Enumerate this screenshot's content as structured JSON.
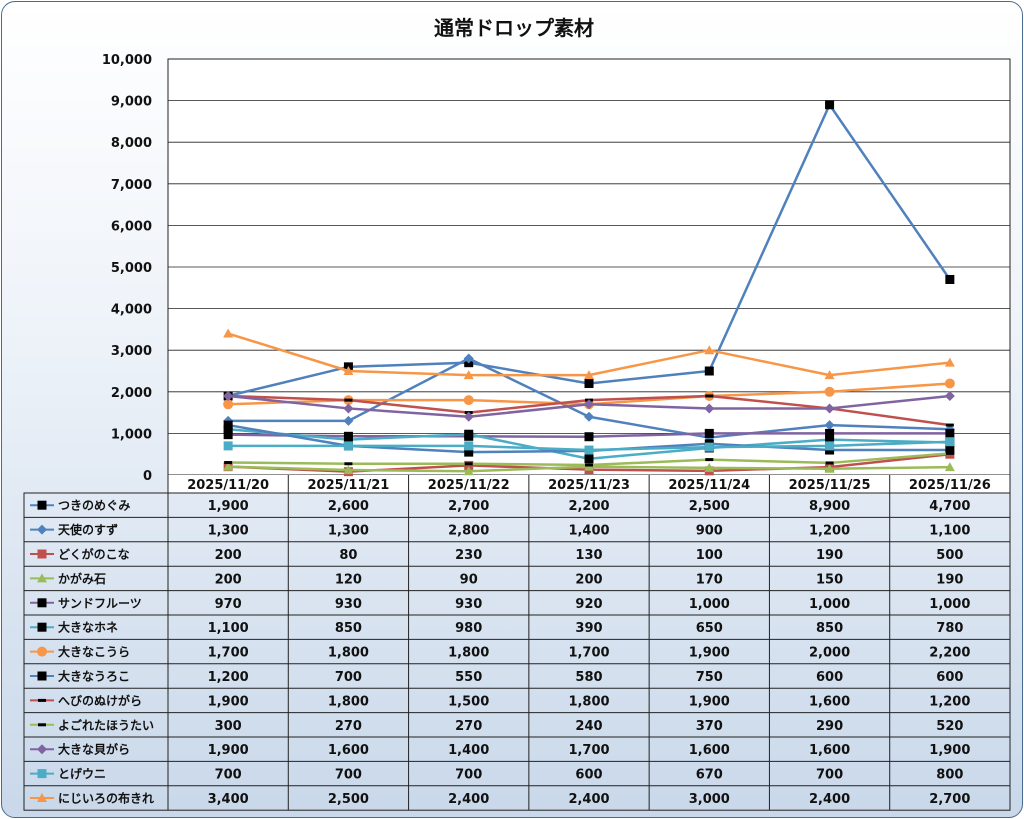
{
  "chart_data": {
    "type": "line",
    "title": "通常ドロップ素材",
    "xlabel": "",
    "ylabel": "",
    "ylim": [
      0,
      10000
    ],
    "yticks": [
      "0",
      "1,000",
      "2,000",
      "3,000",
      "4,000",
      "5,000",
      "6,000",
      "7,000",
      "8,000",
      "9,000",
      "10,000"
    ],
    "categories": [
      "2025/11/20",
      "2025/11/21",
      "2025/11/22",
      "2025/11/23",
      "2025/11/24",
      "2025/11/25",
      "2025/11/26"
    ],
    "series": [
      {
        "name": "つきのめぐみ",
        "values": [
          1900,
          2600,
          2700,
          2200,
          2500,
          8900,
          4700
        ],
        "labels": [
          "1,900",
          "2,600",
          "2,700",
          "2,200",
          "2,500",
          "8,900",
          "4,700"
        ],
        "color": "#4f81bd",
        "marker": "square",
        "marker_color": "#000000"
      },
      {
        "name": "天使のすず",
        "values": [
          1300,
          1300,
          2800,
          1400,
          900,
          1200,
          1100
        ],
        "labels": [
          "1,300",
          "1,300",
          "2,800",
          "1,400",
          "900",
          "1,200",
          "1,100"
        ],
        "color": "#4f81bd",
        "marker": "diamond",
        "marker_color": "#4f81bd"
      },
      {
        "name": "どくがのこな",
        "values": [
          200,
          80,
          230,
          130,
          100,
          190,
          500
        ],
        "labels": [
          "200",
          "80",
          "230",
          "130",
          "100",
          "190",
          "500"
        ],
        "color": "#c0504d",
        "marker": "square",
        "marker_color": "#c0504d"
      },
      {
        "name": "かがみ石",
        "values": [
          200,
          120,
          90,
          200,
          170,
          150,
          190
        ],
        "labels": [
          "200",
          "120",
          "90",
          "200",
          "170",
          "150",
          "190"
        ],
        "color": "#9bbb59",
        "marker": "triangle",
        "marker_color": "#9bbb59"
      },
      {
        "name": "サンドフルーツ",
        "values": [
          970,
          930,
          930,
          920,
          1000,
          1000,
          1000
        ],
        "labels": [
          "970",
          "930",
          "930",
          "920",
          "1,000",
          "1,000",
          "1,000"
        ],
        "color": "#8064a2",
        "marker": "square",
        "marker_color": "#000000"
      },
      {
        "name": "大きなホネ",
        "values": [
          1100,
          850,
          980,
          390,
          650,
          850,
          780
        ],
        "labels": [
          "1,100",
          "850",
          "980",
          "390",
          "650",
          "850",
          "780"
        ],
        "color": "#4bacc6",
        "marker": "square",
        "marker_color": "#000000"
      },
      {
        "name": "大きなこうら",
        "values": [
          1700,
          1800,
          1800,
          1700,
          1900,
          2000,
          2200
        ],
        "labels": [
          "1,700",
          "1,800",
          "1,800",
          "1,700",
          "1,900",
          "2,000",
          "2,200"
        ],
        "color": "#f79646",
        "marker": "circle",
        "marker_color": "#f79646"
      },
      {
        "name": "大きなうろこ",
        "values": [
          1200,
          700,
          550,
          580,
          750,
          600,
          600
        ],
        "labels": [
          "1,200",
          "700",
          "550",
          "580",
          "750",
          "600",
          "600"
        ],
        "color": "#4f81bd",
        "marker": "square",
        "marker_color": "#000000"
      },
      {
        "name": "へびのぬけがら",
        "values": [
          1900,
          1800,
          1500,
          1800,
          1900,
          1600,
          1200
        ],
        "labels": [
          "1,900",
          "1,800",
          "1,500",
          "1,800",
          "1,900",
          "1,600",
          "1,200"
        ],
        "color": "#c0504d",
        "marker": "dash",
        "marker_color": "#000000"
      },
      {
        "name": "よごれたほうたい",
        "values": [
          300,
          270,
          270,
          240,
          370,
          290,
          520
        ],
        "labels": [
          "300",
          "270",
          "270",
          "240",
          "370",
          "290",
          "520"
        ],
        "color": "#9bbb59",
        "marker": "dash",
        "marker_color": "#000000"
      },
      {
        "name": "大きな貝がら",
        "values": [
          1900,
          1600,
          1400,
          1700,
          1600,
          1600,
          1900
        ],
        "labels": [
          "1,900",
          "1,600",
          "1,400",
          "1,700",
          "1,600",
          "1,600",
          "1,900"
        ],
        "color": "#8064a2",
        "marker": "diamond",
        "marker_color": "#8064a2"
      },
      {
        "name": "とげウニ",
        "values": [
          700,
          700,
          700,
          600,
          670,
          700,
          800
        ],
        "labels": [
          "700",
          "700",
          "700",
          "600",
          "670",
          "700",
          "800"
        ],
        "color": "#4bacc6",
        "marker": "square",
        "marker_color": "#4bacc6"
      },
      {
        "name": "にじいろの布きれ",
        "values": [
          3400,
          2500,
          2400,
          2400,
          3000,
          2400,
          2700
        ],
        "labels": [
          "3,400",
          "2,500",
          "2,400",
          "2,400",
          "3,000",
          "2,400",
          "2,700"
        ],
        "color": "#f79646",
        "marker": "triangle",
        "marker_color": "#f79646"
      }
    ],
    "grid": true,
    "legend": "data-table"
  }
}
